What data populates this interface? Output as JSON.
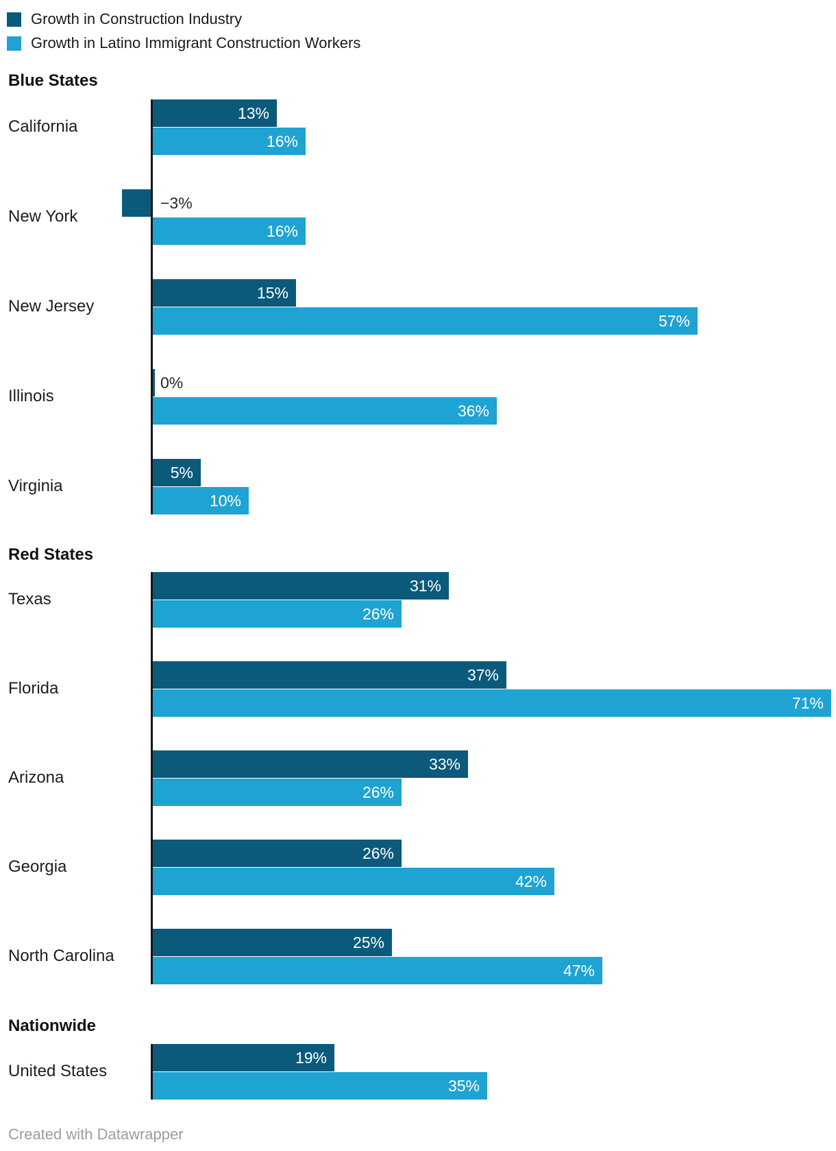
{
  "legend": {
    "items": [
      {
        "label": "Growth in Construction Industry",
        "color": "#0b5a7c"
      },
      {
        "label": "Growth in Latino Immigrant Construction Workers",
        "color": "#1fa3d2"
      }
    ]
  },
  "chart_data": {
    "type": "bar",
    "orientation": "horizontal",
    "unit": "percent",
    "value_axis_visible": false,
    "grid": false,
    "legend_position": "top-left",
    "series": [
      {
        "name": "Growth in Construction Industry",
        "color": "#0b5a7c"
      },
      {
        "name": "Growth in Latino Immigrant Construction Workers",
        "color": "#1fa3d2"
      }
    ],
    "groups": [
      {
        "header": "Blue States",
        "rows": [
          {
            "state": "California",
            "values": [
              13,
              16
            ],
            "labels": [
              "13%",
              "16%"
            ]
          },
          {
            "state": "New York",
            "values": [
              -3,
              16
            ],
            "labels": [
              "−3%",
              "16%"
            ]
          },
          {
            "state": "New Jersey",
            "values": [
              15,
              57
            ],
            "labels": [
              "15%",
              "57%"
            ]
          },
          {
            "state": "Illinois",
            "values": [
              0,
              36
            ],
            "labels": [
              "0%",
              "36%"
            ]
          },
          {
            "state": "Virginia",
            "values": [
              5,
              10
            ],
            "labels": [
              "5%",
              "10%"
            ]
          }
        ]
      },
      {
        "header": "Red States",
        "rows": [
          {
            "state": "Texas",
            "values": [
              31,
              26
            ],
            "labels": [
              "31%",
              "26%"
            ]
          },
          {
            "state": "Florida",
            "values": [
              37,
              71
            ],
            "labels": [
              "37%",
              "71%"
            ]
          },
          {
            "state": "Arizona",
            "values": [
              33,
              26
            ],
            "labels": [
              "33%",
              "26%"
            ]
          },
          {
            "state": "Georgia",
            "values": [
              26,
              42
            ],
            "labels": [
              "26%",
              "42%"
            ]
          },
          {
            "state": "North Carolina",
            "values": [
              25,
              47
            ],
            "labels": [
              "25%",
              "47%"
            ]
          }
        ]
      },
      {
        "header": "Nationwide",
        "rows": [
          {
            "state": "United States",
            "values": [
              19,
              35
            ],
            "labels": [
              "19%",
              "35%"
            ]
          }
        ]
      }
    ],
    "colors": {
      "bar_dark": "#0b5a7c",
      "bar_light": "#1fa3d2",
      "axis": "#161616",
      "label_text": "#1d1d1d",
      "value_text_inside": "#ffffff",
      "value_text_outside": "#262626"
    }
  },
  "footer": {
    "credit": "Created with Datawrapper"
  }
}
